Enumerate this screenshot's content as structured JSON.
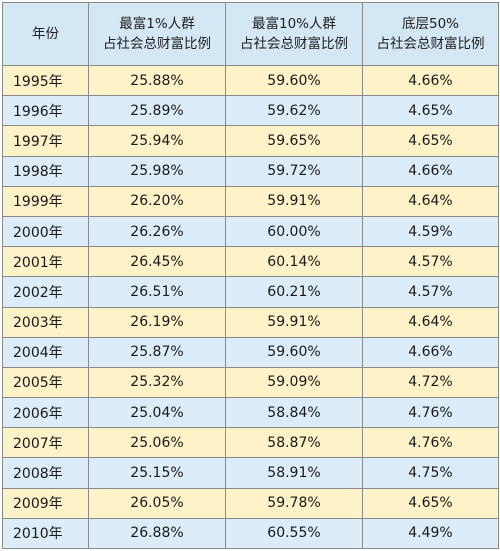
{
  "table": {
    "headers": [
      {
        "line1": "年份",
        "line2": ""
      },
      {
        "line1": "最富1%人群",
        "line2": "占社会总财富比例"
      },
      {
        "line1": "最富10%人群",
        "line2": "占社会总财富比例"
      },
      {
        "line1": "底层50%",
        "line2": "占社会总财富比例"
      }
    ],
    "rows": [
      [
        "1995年",
        "25.88%",
        "59.60%",
        "4.66%"
      ],
      [
        "1996年",
        "25.89%",
        "59.62%",
        "4.65%"
      ],
      [
        "1997年",
        "25.94%",
        "59.65%",
        "4.65%"
      ],
      [
        "1998年",
        "25.98%",
        "59.72%",
        "4.66%"
      ],
      [
        "1999年",
        "26.20%",
        "59.91%",
        "4.64%"
      ],
      [
        "2000年",
        "26.26%",
        "60.00%",
        "4.59%"
      ],
      [
        "2001年",
        "26.45%",
        "60.14%",
        "4.57%"
      ],
      [
        "2002年",
        "26.51%",
        "60.21%",
        "4.57%"
      ],
      [
        "2003年",
        "26.19%",
        "59.91%",
        "4.64%"
      ],
      [
        "2004年",
        "25.87%",
        "59.60%",
        "4.66%"
      ],
      [
        "2005年",
        "25.32%",
        "59.09%",
        "4.72%"
      ],
      [
        "2006年",
        "25.04%",
        "58.84%",
        "4.76%"
      ],
      [
        "2007年",
        "25.06%",
        "58.87%",
        "4.76%"
      ],
      [
        "2008年",
        "25.15%",
        "58.91%",
        "4.75%"
      ],
      [
        "2009年",
        "26.05%",
        "59.78%",
        "4.65%"
      ],
      [
        "2010年",
        "26.88%",
        "60.55%",
        "4.49%"
      ]
    ]
  },
  "colors": {
    "header_bg": "#d4e7f4",
    "odd_row_bg": "#fdf2c8",
    "even_row_bg": "#dcecf8",
    "border": "#8a8a8a"
  }
}
